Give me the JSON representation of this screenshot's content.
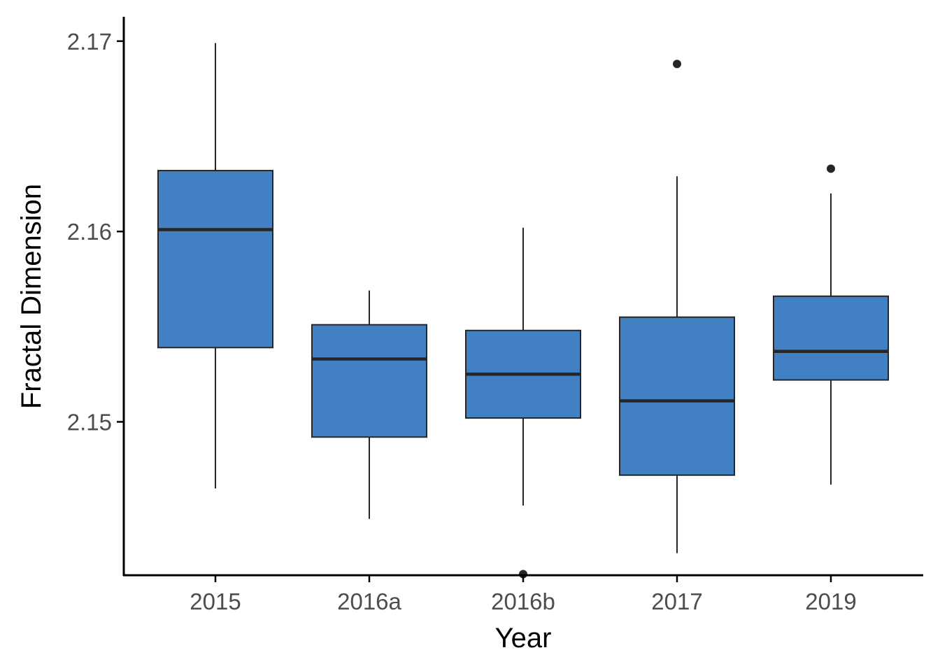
{
  "chart_data": {
    "type": "box",
    "title": "",
    "xlabel": "Year",
    "ylabel": "Fractal Dimension",
    "ylim": [
      2.14194,
      2.17128
    ],
    "yticks": [
      2.15,
      2.16,
      2.17
    ],
    "ytick_labels": [
      "2.15",
      "2.16",
      "2.17"
    ],
    "categories": [
      "2015",
      "2016a",
      "2016b",
      "2017",
      "2019"
    ],
    "grid": false,
    "legend": "none",
    "box_fill": "#4180C2",
    "line_color": "#262626",
    "boxes": [
      {
        "category": "2015",
        "whisker_low": 2.1465,
        "q1": 2.1539,
        "median": 2.1601,
        "q3": 2.1632,
        "whisker_high": 2.1699,
        "outliers": []
      },
      {
        "category": "2016a",
        "whisker_low": 2.1449,
        "q1": 2.1492,
        "median": 2.1533,
        "q3": 2.1551,
        "whisker_high": 2.1569,
        "outliers": []
      },
      {
        "category": "2016b",
        "whisker_low": 2.1456,
        "q1": 2.1502,
        "median": 2.1525,
        "q3": 2.1548,
        "whisker_high": 2.1602,
        "outliers": [
          2.142
        ]
      },
      {
        "category": "2017",
        "whisker_low": 2.1431,
        "q1": 2.1472,
        "median": 2.1511,
        "q3": 2.1555,
        "whisker_high": 2.1629,
        "outliers": [
          2.1688
        ]
      },
      {
        "category": "2019",
        "whisker_low": 2.1467,
        "q1": 2.1522,
        "median": 2.1537,
        "q3": 2.1566,
        "whisker_high": 2.162,
        "outliers": [
          2.1633
        ]
      }
    ]
  }
}
